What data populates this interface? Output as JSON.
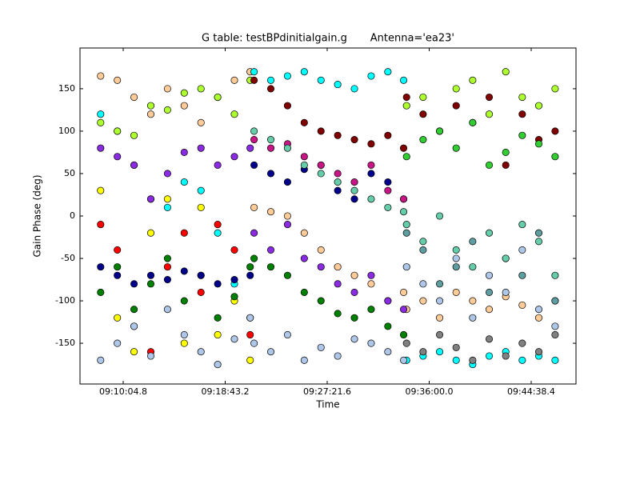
{
  "chart_data": {
    "type": "scatter",
    "title": "G table: testBPdinitialgain.g       Antenna='ea23'",
    "x_label": "Time",
    "y_label": "Gain Phase (deg)",
    "xlim": [
      32785.2,
      35306.1
    ],
    "ylim": [
      -198,
      198
    ],
    "xticks": [
      {
        "value": 33004.8,
        "label": "09:10:04.8"
      },
      {
        "value": 33523.2,
        "label": "09:18:43.2"
      },
      {
        "value": 34041.6,
        "label": "09:27:21.6"
      },
      {
        "value": 34560,
        "label": "09:36:00.0"
      },
      {
        "value": 35078.4,
        "label": "09:44:38.4"
      }
    ],
    "yticks": [
      -150,
      -100,
      -50,
      0,
      50,
      100,
      150
    ],
    "x": [
      32890,
      32975,
      33060,
      33145,
      33230,
      33315,
      33400,
      33485,
      33570,
      33650,
      33670,
      33755,
      33840,
      33925,
      34010,
      34095,
      34180,
      34265,
      34350,
      34430,
      34445,
      34529,
      34613,
      34697,
      34781,
      34865,
      34949,
      35033,
      35117,
      35200
    ],
    "series": [
      {
        "color": "#ffcc99",
        "values": [
          165,
          160,
          140,
          120,
          150,
          130,
          110,
          140,
          160,
          170,
          10,
          5,
          0,
          -20,
          -40,
          -60,
          -70,
          -80,
          -100,
          -90,
          -110,
          -100,
          -120,
          -90,
          -100,
          -110,
          -95,
          -105,
          -120,
          -100
        ]
      },
      {
        "color": "#00ffff",
        "values": [
          120,
          100,
          60,
          20,
          10,
          40,
          30,
          -20,
          -80,
          -120,
          170,
          160,
          165,
          170,
          160,
          155,
          150,
          165,
          170,
          160,
          -170,
          -165,
          -160,
          -170,
          -175,
          -165,
          -160,
          -170,
          -165,
          -170
        ]
      },
      {
        "color": "#ff0000",
        "values": [
          -10,
          -40,
          -130,
          -160,
          -60,
          -20,
          -90,
          -10,
          -40,
          -140,
          null,
          null,
          null,
          null,
          null,
          null,
          null,
          null,
          null,
          null,
          null,
          null,
          null,
          null,
          null,
          null,
          null,
          null,
          null,
          null
        ]
      },
      {
        "color": "#ffff00",
        "values": [
          30,
          -120,
          -160,
          -20,
          20,
          -150,
          10,
          -140,
          -100,
          -170,
          null,
          null,
          null,
          null,
          null,
          null,
          null,
          null,
          null,
          null,
          null,
          null,
          null,
          null,
          null,
          null,
          null,
          null,
          null,
          null
        ]
      },
      {
        "color": "#008000",
        "values": [
          -90,
          -60,
          -110,
          -80,
          -50,
          -100,
          -70,
          -120,
          -95,
          -60,
          -50,
          -60,
          -70,
          -90,
          -100,
          -115,
          -120,
          -110,
          -130,
          -140,
          null,
          null,
          null,
          null,
          null,
          null,
          null,
          null,
          null,
          null
        ]
      },
      {
        "color": "#adff2f",
        "values": [
          110,
          100,
          95,
          130,
          125,
          145,
          150,
          140,
          120,
          160,
          null,
          null,
          null,
          null,
          null,
          null,
          null,
          null,
          null,
          null,
          130,
          140,
          100,
          150,
          160,
          120,
          170,
          140,
          130,
          150
        ]
      },
      {
        "color": "#8a2be2",
        "values": [
          80,
          70,
          60,
          20,
          50,
          75,
          80,
          60,
          70,
          80,
          -20,
          -40,
          -10,
          -50,
          -60,
          -80,
          -90,
          -70,
          -100,
          -110,
          null,
          null,
          null,
          null,
          null,
          null,
          null,
          null,
          null,
          null
        ]
      },
      {
        "color": "#00008b",
        "values": [
          -60,
          -70,
          -80,
          -70,
          -75,
          -65,
          -70,
          -80,
          -75,
          -70,
          60,
          50,
          40,
          55,
          60,
          30,
          20,
          50,
          40,
          20,
          null,
          null,
          null,
          null,
          null,
          null,
          null,
          null,
          null,
          null
        ]
      },
      {
        "color": "#800000",
        "values": [
          null,
          null,
          null,
          null,
          null,
          null,
          null,
          null,
          null,
          null,
          160,
          150,
          130,
          110,
          100,
          95,
          90,
          85,
          95,
          80,
          140,
          120,
          100,
          130,
          110,
          140,
          60,
          120,
          90,
          100
        ]
      },
      {
        "color": "#c71585",
        "values": [
          null,
          null,
          null,
          null,
          null,
          null,
          null,
          null,
          null,
          null,
          90,
          80,
          85,
          70,
          60,
          50,
          40,
          60,
          30,
          20,
          null,
          null,
          null,
          null,
          null,
          null,
          null,
          null,
          null,
          null
        ]
      },
      {
        "color": "#32cd32",
        "values": [
          null,
          null,
          null,
          null,
          null,
          null,
          null,
          null,
          null,
          null,
          null,
          null,
          null,
          null,
          null,
          null,
          null,
          null,
          null,
          null,
          70,
          90,
          100,
          80,
          110,
          60,
          75,
          95,
          85,
          70
        ]
      },
      {
        "color": "#aec6e8",
        "values": [
          -170,
          -150,
          -130,
          -165,
          -110,
          -140,
          -160,
          -175,
          -145,
          -120,
          -150,
          -160,
          -140,
          -170,
          -155,
          -165,
          -145,
          -150,
          -160,
          -170,
          -60,
          -80,
          -100,
          -50,
          -120,
          -70,
          -90,
          -40,
          -110,
          -130
        ]
      },
      {
        "color": "#5f9ea0",
        "values": [
          null,
          null,
          null,
          null,
          null,
          null,
          null,
          null,
          null,
          null,
          null,
          null,
          null,
          null,
          null,
          null,
          null,
          null,
          null,
          null,
          -20,
          -40,
          -80,
          -60,
          -30,
          -90,
          -50,
          -70,
          -20,
          -100
        ]
      },
      {
        "color": "#808080",
        "values": [
          null,
          null,
          null,
          null,
          null,
          null,
          null,
          null,
          null,
          null,
          null,
          null,
          null,
          null,
          null,
          null,
          null,
          null,
          null,
          null,
          -150,
          -160,
          -140,
          -155,
          -170,
          -145,
          -165,
          -150,
          -160,
          -140
        ]
      },
      {
        "color": "#66cdaa",
        "values": [
          null,
          null,
          null,
          null,
          null,
          null,
          null,
          null,
          null,
          null,
          100,
          90,
          80,
          60,
          50,
          40,
          30,
          20,
          10,
          5,
          -10,
          -30,
          0,
          -40,
          -60,
          -20,
          -50,
          -10,
          -30,
          -70
        ]
      }
    ]
  }
}
